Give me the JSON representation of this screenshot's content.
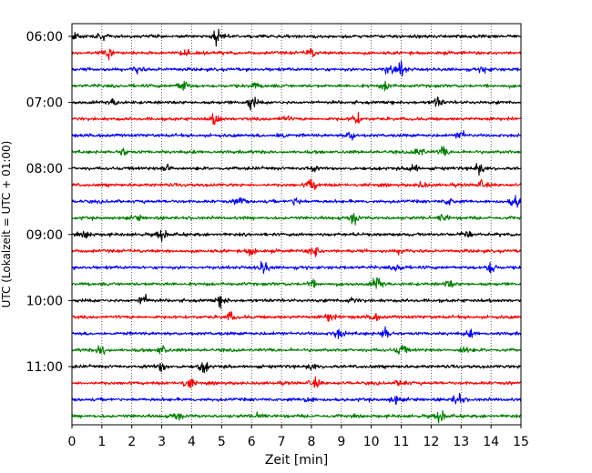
{
  "chart_data": {
    "type": "line",
    "subtype": "helicorder",
    "title": "",
    "xlabel": "Zeit  [min]",
    "ylabel": "UTC (Lokalzeit = UTC + 01:00)",
    "xlim": [
      0,
      15
    ],
    "x_ticks": [
      0,
      1,
      2,
      3,
      4,
      5,
      6,
      7,
      8,
      9,
      10,
      11,
      12,
      13,
      14,
      15
    ],
    "x_tick_labels": [
      "0",
      "1",
      "2",
      "3",
      "4",
      "5",
      "6",
      "7",
      "8",
      "9",
      "10",
      "11",
      "12",
      "13",
      "14",
      "15"
    ],
    "y_tick_labels": [
      "06:00",
      "07:00",
      "08:00",
      "09:00",
      "10:00",
      "11:00"
    ],
    "minutes_per_trace": 15,
    "trace_count": 24,
    "trace_colors": [
      "#000000",
      "#ff0000",
      "#0000ff",
      "#008000"
    ],
    "vertical_grid": "dotted",
    "traces": [
      {
        "start": "06:00",
        "bursts": [
          [
            4.85,
            1.0
          ],
          [
            0.1,
            0.5
          ],
          [
            1.0,
            0.4
          ]
        ]
      },
      {
        "start": "06:15",
        "bursts": [
          [
            1.2,
            1.0
          ],
          [
            8.0,
            0.6
          ],
          [
            3.8,
            0.4
          ]
        ]
      },
      {
        "start": "06:30",
        "bursts": [
          [
            11.0,
            1.0
          ],
          [
            2.2,
            0.5
          ],
          [
            13.8,
            0.5
          ],
          [
            10.6,
            0.6
          ]
        ]
      },
      {
        "start": "06:45",
        "bursts": [
          [
            3.7,
            0.9
          ],
          [
            10.5,
            0.6
          ],
          [
            6.1,
            0.4
          ]
        ]
      },
      {
        "start": "07:00",
        "bursts": [
          [
            6.0,
            0.9
          ],
          [
            12.2,
            0.7
          ],
          [
            1.4,
            0.4
          ]
        ]
      },
      {
        "start": "07:15",
        "bursts": [
          [
            4.8,
            0.8
          ],
          [
            9.5,
            0.8
          ],
          [
            7.1,
            0.4
          ]
        ]
      },
      {
        "start": "07:30",
        "bursts": [
          [
            9.3,
            0.7
          ],
          [
            7.0,
            0.5
          ],
          [
            13.0,
            0.6
          ]
        ]
      },
      {
        "start": "07:45",
        "bursts": [
          [
            11.6,
            0.8
          ],
          [
            12.4,
            0.6
          ],
          [
            1.7,
            0.5
          ]
        ]
      },
      {
        "start": "08:00",
        "bursts": [
          [
            13.6,
            0.9
          ],
          [
            3.2,
            0.7
          ],
          [
            11.4,
            0.7
          ],
          [
            8.0,
            0.4
          ]
        ]
      },
      {
        "start": "08:15",
        "bursts": [
          [
            8.0,
            0.9
          ],
          [
            13.7,
            0.6
          ],
          [
            11.7,
            0.4
          ]
        ]
      },
      {
        "start": "08:30",
        "bursts": [
          [
            14.8,
            0.9
          ],
          [
            5.6,
            0.6
          ],
          [
            7.5,
            0.6
          ],
          [
            12.6,
            0.5
          ]
        ]
      },
      {
        "start": "08:45",
        "bursts": [
          [
            9.4,
            0.9
          ],
          [
            12.4,
            0.6
          ],
          [
            2.2,
            0.3
          ]
        ]
      },
      {
        "start": "09:00",
        "bursts": [
          [
            3.0,
            0.9
          ],
          [
            13.2,
            0.5
          ],
          [
            0.5,
            0.4
          ]
        ]
      },
      {
        "start": "09:15",
        "bursts": [
          [
            8.1,
            0.9
          ],
          [
            6.0,
            0.6
          ],
          [
            11.0,
            0.4
          ]
        ]
      },
      {
        "start": "09:30",
        "bursts": [
          [
            6.4,
            0.9
          ],
          [
            14.0,
            0.8
          ],
          [
            10.9,
            0.6
          ]
        ]
      },
      {
        "start": "09:45",
        "bursts": [
          [
            10.2,
            1.0
          ],
          [
            8.0,
            0.5
          ],
          [
            12.6,
            0.5
          ]
        ]
      },
      {
        "start": "10:00",
        "bursts": [
          [
            2.4,
            0.8
          ],
          [
            5.0,
            0.7
          ],
          [
            9.3,
            0.4
          ]
        ]
      },
      {
        "start": "10:15",
        "bursts": [
          [
            5.3,
            0.6
          ],
          [
            8.6,
            0.6
          ],
          [
            10.1,
            0.5
          ]
        ]
      },
      {
        "start": "10:30",
        "bursts": [
          [
            10.5,
            0.9
          ],
          [
            8.9,
            0.7
          ],
          [
            13.3,
            0.4
          ]
        ]
      },
      {
        "start": "10:45",
        "bursts": [
          [
            1.0,
            0.8
          ],
          [
            3.0,
            0.6
          ],
          [
            11.0,
            0.8
          ],
          [
            13.1,
            0.5
          ]
        ]
      },
      {
        "start": "11:00",
        "bursts": [
          [
            4.4,
            0.8
          ],
          [
            3.0,
            0.6
          ],
          [
            8.0,
            0.4
          ]
        ]
      },
      {
        "start": "11:15",
        "bursts": [
          [
            3.9,
            0.9
          ],
          [
            8.1,
            0.7
          ],
          [
            11.0,
            0.5
          ]
        ]
      },
      {
        "start": "11:30",
        "bursts": [
          [
            12.9,
            0.9
          ],
          [
            7.9,
            0.5
          ],
          [
            10.8,
            0.6
          ]
        ]
      },
      {
        "start": "11:45",
        "bursts": [
          [
            12.3,
            1.0
          ],
          [
            3.5,
            0.7
          ],
          [
            6.3,
            0.4
          ]
        ]
      }
    ]
  }
}
